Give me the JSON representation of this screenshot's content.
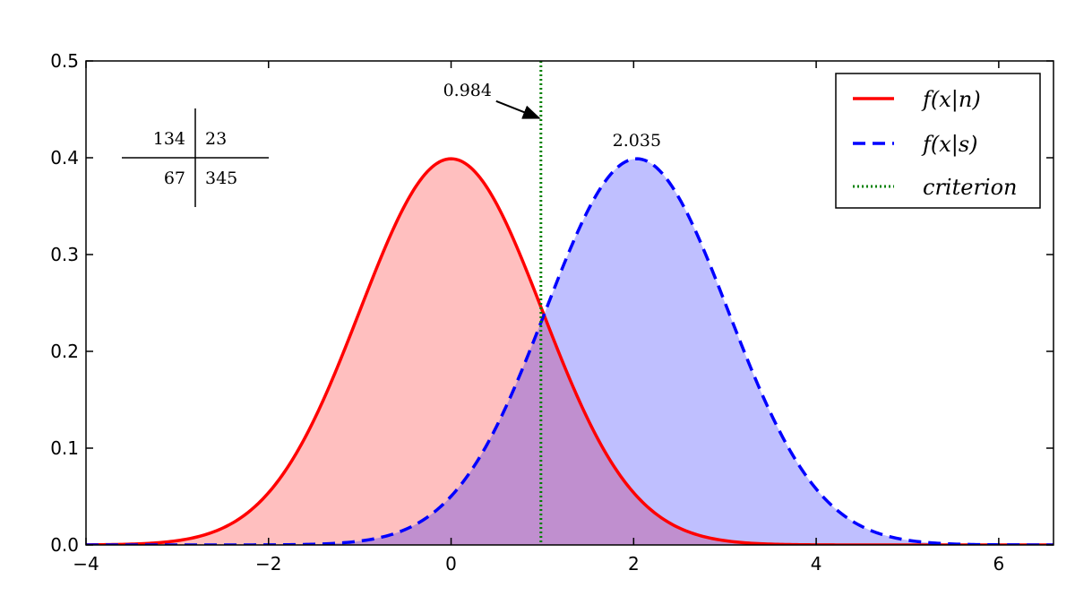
{
  "chart_data": {
    "type": "line",
    "title": "",
    "xlabel": "",
    "ylabel": "",
    "xlim": [
      -4,
      6.6
    ],
    "ylim": [
      0,
      0.5
    ],
    "xticks": [
      "−4",
      "−2",
      "0",
      "2",
      "4",
      "6"
    ],
    "xtick_values": [
      -4,
      -2,
      0,
      2,
      4,
      6
    ],
    "yticks": [
      "0.0",
      "0.1",
      "0.2",
      "0.3",
      "0.4",
      "0.5"
    ],
    "ytick_values": [
      0,
      0.1,
      0.2,
      0.3,
      0.4,
      0.5
    ],
    "grid": false,
    "legend_position": "top-right",
    "series": [
      {
        "name": "f(x|n)",
        "kind": "normal-pdf",
        "mean": 0,
        "sd": 1,
        "color": "#ff0000",
        "fill": "#ffbfbf",
        "linestyle": "solid"
      },
      {
        "name": "f(x|s)",
        "kind": "normal-pdf",
        "mean": 2.035,
        "sd": 1,
        "color": "#0000ff",
        "fill": "#bfbfff",
        "linestyle": "dashed"
      },
      {
        "name": "criterion",
        "kind": "vline",
        "x": 0.984,
        "color": "#008000",
        "linestyle": "dotted"
      }
    ],
    "overlap_fill": "#c08fcf",
    "annotations": [
      {
        "text": "0.984",
        "x": 0.984,
        "y": 0.44,
        "arrow": true
      },
      {
        "text": "2.035",
        "x": 2.035,
        "y": 0.4
      }
    ],
    "table": {
      "cells": [
        [
          "134",
          "23"
        ],
        [
          "67",
          "345"
        ]
      ]
    }
  }
}
